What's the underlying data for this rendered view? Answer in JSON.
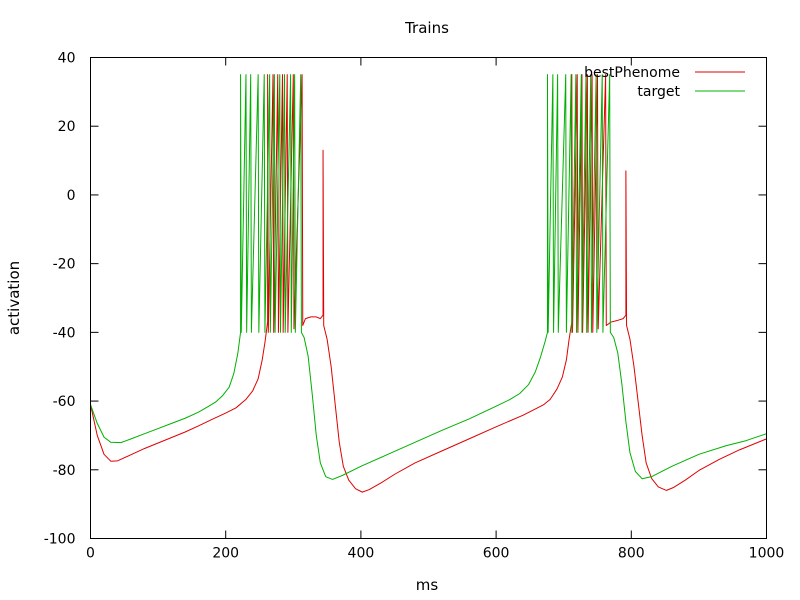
{
  "chart_data": {
    "type": "line",
    "title": "Trains",
    "xlabel": "ms",
    "ylabel": "activation",
    "xlim": [
      0,
      1000
    ],
    "ylim": [
      -100,
      40
    ],
    "xticks": [
      "0",
      "200",
      "400",
      "600",
      "800",
      "1000"
    ],
    "yticks": [
      "-100",
      "-80",
      "-60",
      "-40",
      "-20",
      "0",
      "20",
      "40"
    ],
    "grid": false,
    "legend_position": "top-right",
    "series": [
      {
        "name": "bestPhenome",
        "color": "#e00000",
        "burst_spike_times": [
          [
            262,
            270,
            277,
            284,
            291,
            300,
            313,
            344
          ],
          [
            712,
            720,
            727,
            735,
            742,
            750,
            762,
            792
          ]
        ],
        "points": [
          [
            0,
            -61
          ],
          [
            10,
            -70
          ],
          [
            20,
            -75.5
          ],
          [
            30,
            -77.5
          ],
          [
            40,
            -77.4
          ],
          [
            60,
            -75.6
          ],
          [
            80,
            -73.8
          ],
          [
            100,
            -72.2
          ],
          [
            120,
            -70.6
          ],
          [
            140,
            -69
          ],
          [
            160,
            -67.2
          ],
          [
            180,
            -65.3
          ],
          [
            200,
            -63.5
          ],
          [
            215,
            -62
          ],
          [
            230,
            -59.5
          ],
          [
            240,
            -57
          ],
          [
            248,
            -53.5
          ],
          [
            254,
            -48
          ],
          [
            258,
            -43
          ],
          [
            262,
            -37
          ],
          [
            262,
            35
          ],
          [
            263,
            -40
          ],
          [
            270,
            35
          ],
          [
            271,
            -40
          ],
          [
            277,
            35
          ],
          [
            278,
            -40
          ],
          [
            284,
            35
          ],
          [
            285,
            -40
          ],
          [
            291,
            35
          ],
          [
            292,
            -40
          ],
          [
            300,
            35
          ],
          [
            301,
            -39
          ],
          [
            313,
            35
          ],
          [
            314,
            -38
          ],
          [
            318,
            -36
          ],
          [
            326,
            -35.5
          ],
          [
            334,
            -35.5
          ],
          [
            340,
            -36
          ],
          [
            344,
            -35
          ],
          [
            344,
            13
          ],
          [
            345,
            -38
          ],
          [
            350,
            -42
          ],
          [
            356,
            -50
          ],
          [
            362,
            -61
          ],
          [
            368,
            -72
          ],
          [
            374,
            -79
          ],
          [
            382,
            -83
          ],
          [
            392,
            -85.5
          ],
          [
            402,
            -86.5
          ],
          [
            412,
            -85.8
          ],
          [
            430,
            -83.8
          ],
          [
            450,
            -81.3
          ],
          [
            480,
            -78
          ],
          [
            520,
            -74.5
          ],
          [
            560,
            -71
          ],
          [
            600,
            -67.5
          ],
          [
            620,
            -65.8
          ],
          [
            640,
            -64.1
          ],
          [
            660,
            -62.1
          ],
          [
            670,
            -61.1
          ],
          [
            680,
            -59.5
          ],
          [
            690,
            -56.5
          ],
          [
            698,
            -53
          ],
          [
            704,
            -48
          ],
          [
            708,
            -42
          ],
          [
            712,
            -37
          ],
          [
            712,
            35
          ],
          [
            713,
            -40
          ],
          [
            720,
            35
          ],
          [
            721,
            -40
          ],
          [
            727,
            35
          ],
          [
            728,
            -40
          ],
          [
            735,
            35
          ],
          [
            736,
            -40
          ],
          [
            742,
            35
          ],
          [
            743,
            -40
          ],
          [
            750,
            35
          ],
          [
            751,
            -39
          ],
          [
            762,
            35
          ],
          [
            763,
            -38
          ],
          [
            770,
            -37
          ],
          [
            780,
            -36.5
          ],
          [
            788,
            -36
          ],
          [
            792,
            -35
          ],
          [
            792,
            7
          ],
          [
            793,
            -38
          ],
          [
            798,
            -42
          ],
          [
            804,
            -50
          ],
          [
            810,
            -60
          ],
          [
            816,
            -70
          ],
          [
            822,
            -78
          ],
          [
            830,
            -82.5
          ],
          [
            840,
            -85
          ],
          [
            852,
            -86
          ],
          [
            862,
            -85.2
          ],
          [
            880,
            -83
          ],
          [
            900,
            -80.2
          ],
          [
            930,
            -77
          ],
          [
            960,
            -74.2
          ],
          [
            1000,
            -71
          ]
        ]
      },
      {
        "name": "target",
        "color": "#00b000",
        "burst_spike_times": [
          [
            222,
            230,
            237,
            248,
            257,
            265,
            272,
            280,
            287,
            296,
            302,
            311
          ],
          [
            676,
            684,
            691,
            703,
            711,
            718,
            726,
            733,
            740,
            748,
            757,
            768
          ]
        ],
        "points": [
          [
            0,
            -61
          ],
          [
            10,
            -66.5
          ],
          [
            20,
            -70.5
          ],
          [
            30,
            -72
          ],
          [
            45,
            -72.1
          ],
          [
            60,
            -71
          ],
          [
            80,
            -69.5
          ],
          [
            100,
            -68
          ],
          [
            120,
            -66.5
          ],
          [
            140,
            -65
          ],
          [
            160,
            -63.2
          ],
          [
            175,
            -61.5
          ],
          [
            185,
            -60.3
          ],
          [
            195,
            -58.5
          ],
          [
            205,
            -56
          ],
          [
            212,
            -52
          ],
          [
            218,
            -46
          ],
          [
            222,
            -40
          ],
          [
            222,
            35
          ],
          [
            223,
            -40
          ],
          [
            230,
            35
          ],
          [
            231,
            -40
          ],
          [
            237,
            35
          ],
          [
            238,
            -40
          ],
          [
            248,
            35
          ],
          [
            249,
            -40
          ],
          [
            257,
            35
          ],
          [
            258,
            -40
          ],
          [
            265,
            35
          ],
          [
            266,
            -40
          ],
          [
            272,
            35
          ],
          [
            273,
            -40
          ],
          [
            280,
            35
          ],
          [
            281,
            -40
          ],
          [
            287,
            35
          ],
          [
            288,
            -40
          ],
          [
            296,
            35
          ],
          [
            297,
            -40
          ],
          [
            302,
            35
          ],
          [
            303,
            -40
          ],
          [
            311,
            35
          ],
          [
            312,
            -40
          ],
          [
            316,
            -41.5
          ],
          [
            322,
            -47
          ],
          [
            328,
            -58
          ],
          [
            334,
            -70
          ],
          [
            340,
            -78
          ],
          [
            348,
            -82
          ],
          [
            358,
            -82.8
          ],
          [
            372,
            -81.7
          ],
          [
            400,
            -79
          ],
          [
            440,
            -75.5
          ],
          [
            480,
            -72
          ],
          [
            520,
            -68.5
          ],
          [
            560,
            -65.2
          ],
          [
            600,
            -61.5
          ],
          [
            620,
            -59.6
          ],
          [
            635,
            -57.8
          ],
          [
            648,
            -55.2
          ],
          [
            658,
            -51.5
          ],
          [
            666,
            -47
          ],
          [
            672,
            -43
          ],
          [
            676,
            -40
          ],
          [
            676,
            35
          ],
          [
            677,
            -40
          ],
          [
            684,
            35
          ],
          [
            685,
            -40
          ],
          [
            691,
            35
          ],
          [
            692,
            -40
          ],
          [
            703,
            35
          ],
          [
            704,
            -40
          ],
          [
            711,
            35
          ],
          [
            712,
            -40
          ],
          [
            718,
            35
          ],
          [
            719,
            -40
          ],
          [
            726,
            35
          ],
          [
            727,
            -40
          ],
          [
            733,
            35
          ],
          [
            734,
            -40
          ],
          [
            740,
            35
          ],
          [
            741,
            -40
          ],
          [
            748,
            35
          ],
          [
            749,
            -40
          ],
          [
            757,
            35
          ],
          [
            758,
            -40
          ],
          [
            768,
            35
          ],
          [
            769,
            -40
          ],
          [
            774,
            -41.5
          ],
          [
            780,
            -46
          ],
          [
            786,
            -55
          ],
          [
            792,
            -66
          ],
          [
            798,
            -75
          ],
          [
            806,
            -80.5
          ],
          [
            816,
            -82.6
          ],
          [
            830,
            -82
          ],
          [
            860,
            -79
          ],
          [
            900,
            -75.5
          ],
          [
            940,
            -73
          ],
          [
            970,
            -71.5
          ],
          [
            1000,
            -69.5
          ]
        ]
      }
    ]
  }
}
